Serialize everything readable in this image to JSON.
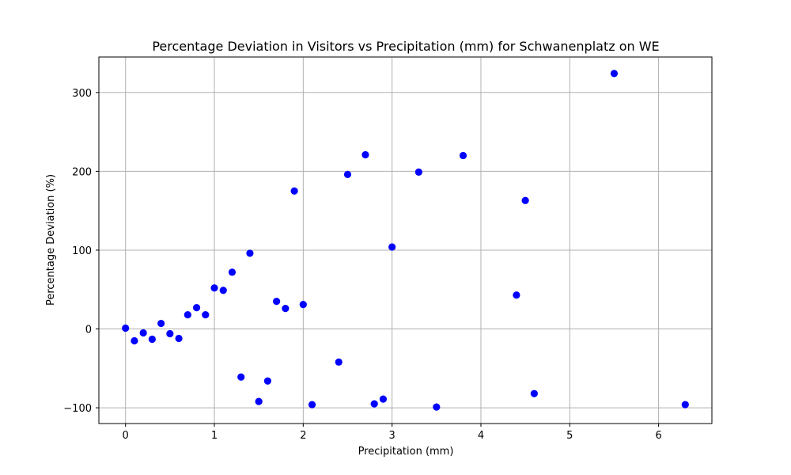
{
  "chart_data": {
    "type": "scatter",
    "title": "Percentage Deviation in Visitors vs Precipitation (mm) for Schwanenplatz on WE",
    "xlabel": "Precipitation (mm)",
    "ylabel": "Percentage Deviation (%)",
    "xlim": [
      -0.3,
      6.6
    ],
    "ylim": [
      -120,
      345
    ],
    "xticks": [
      0,
      1,
      2,
      3,
      4,
      5,
      6
    ],
    "yticks": [
      -100,
      0,
      100,
      200,
      300
    ],
    "grid": true,
    "marker_color": "#0000ff",
    "points": [
      {
        "x": 0.0,
        "y": 1
      },
      {
        "x": 0.1,
        "y": -15
      },
      {
        "x": 0.2,
        "y": -5
      },
      {
        "x": 0.3,
        "y": -13
      },
      {
        "x": 0.4,
        "y": 7
      },
      {
        "x": 0.5,
        "y": -6
      },
      {
        "x": 0.6,
        "y": -12
      },
      {
        "x": 0.7,
        "y": 18
      },
      {
        "x": 0.8,
        "y": 27
      },
      {
        "x": 0.9,
        "y": 18
      },
      {
        "x": 1.0,
        "y": 52
      },
      {
        "x": 1.1,
        "y": 49
      },
      {
        "x": 1.2,
        "y": 72
      },
      {
        "x": 1.3,
        "y": -61
      },
      {
        "x": 1.4,
        "y": 96
      },
      {
        "x": 1.5,
        "y": -92
      },
      {
        "x": 1.6,
        "y": -66
      },
      {
        "x": 1.7,
        "y": 35
      },
      {
        "x": 1.8,
        "y": 26
      },
      {
        "x": 1.9,
        "y": 175
      },
      {
        "x": 2.0,
        "y": 31
      },
      {
        "x": 2.1,
        "y": -96
      },
      {
        "x": 2.4,
        "y": -42
      },
      {
        "x": 2.5,
        "y": 196
      },
      {
        "x": 2.7,
        "y": 221
      },
      {
        "x": 2.8,
        "y": -95
      },
      {
        "x": 2.9,
        "y": -89
      },
      {
        "x": 3.0,
        "y": 104
      },
      {
        "x": 3.3,
        "y": 199
      },
      {
        "x": 3.5,
        "y": -99
      },
      {
        "x": 3.8,
        "y": 220
      },
      {
        "x": 4.4,
        "y": 43
      },
      {
        "x": 4.5,
        "y": 163
      },
      {
        "x": 4.6,
        "y": -82
      },
      {
        "x": 5.5,
        "y": 324
      },
      {
        "x": 6.3,
        "y": -96
      }
    ]
  }
}
